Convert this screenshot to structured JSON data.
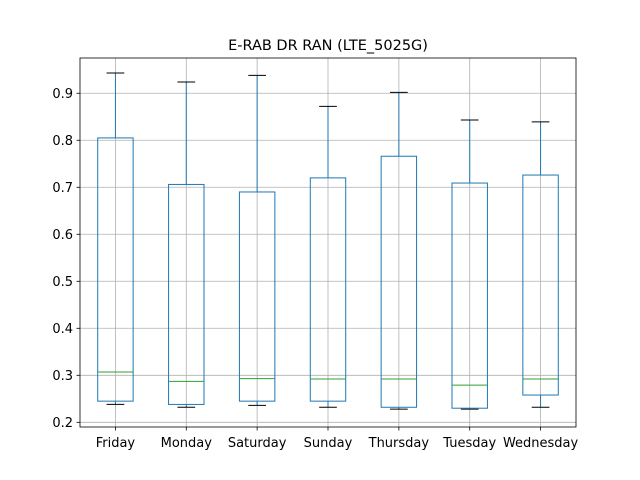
{
  "chart_data": {
    "type": "box",
    "title": "E-RAB DR RAN (LTE_5025G)",
    "xlabel": "",
    "ylabel": "",
    "ylim": [
      0.19,
      0.975
    ],
    "yticks": [
      0.2,
      0.3,
      0.4,
      0.5,
      0.6,
      0.7,
      0.8,
      0.9
    ],
    "grid": true,
    "categories": [
      "Friday",
      "Monday",
      "Saturday",
      "Sunday",
      "Thursday",
      "Tuesday",
      "Wednesday"
    ],
    "boxes": [
      {
        "name": "Friday",
        "whisker_low": 0.238,
        "q1": 0.245,
        "median": 0.307,
        "q3": 0.805,
        "whisker_high": 0.943
      },
      {
        "name": "Monday",
        "whisker_low": 0.232,
        "q1": 0.238,
        "median": 0.287,
        "q3": 0.706,
        "whisker_high": 0.924
      },
      {
        "name": "Saturday",
        "whisker_low": 0.236,
        "q1": 0.245,
        "median": 0.293,
        "q3": 0.69,
        "whisker_high": 0.938
      },
      {
        "name": "Sunday",
        "whisker_low": 0.232,
        "q1": 0.245,
        "median": 0.292,
        "q3": 0.72,
        "whisker_high": 0.872
      },
      {
        "name": "Thursday",
        "whisker_low": 0.228,
        "q1": 0.232,
        "median": 0.292,
        "q3": 0.766,
        "whisker_high": 0.902
      },
      {
        "name": "Tuesday",
        "whisker_low": 0.228,
        "q1": 0.23,
        "median": 0.279,
        "q3": 0.709,
        "whisker_high": 0.843
      },
      {
        "name": "Wednesday",
        "whisker_low": 0.232,
        "q1": 0.258,
        "median": 0.292,
        "q3": 0.726,
        "whisker_high": 0.839
      }
    ],
    "colors": {
      "box": "#1f77b4",
      "median": "#2ca02c",
      "cap": "#000000",
      "grid": "#b0b0b0"
    }
  }
}
